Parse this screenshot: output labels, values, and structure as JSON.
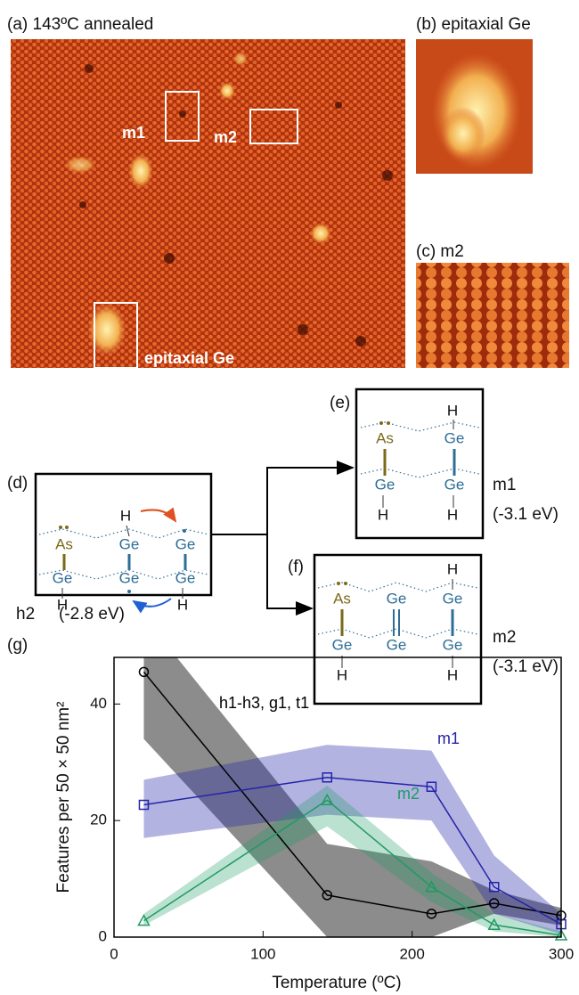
{
  "panel_a": {
    "label": "(a) 143ºC annealed",
    "box_m1": "m1",
    "box_m2": "m2",
    "box_epi": "epitaxial Ge"
  },
  "panel_b": {
    "label": "(b) epitaxial Ge"
  },
  "panel_c": {
    "label": "(c) m2"
  },
  "panel_d": {
    "label": "(d)",
    "atoms": [
      "As",
      "Ge",
      "Ge",
      "Ge",
      "Ge",
      "Ge",
      "H",
      "H",
      "H"
    ],
    "name": "h2",
    "energy": "(-2.8 eV)"
  },
  "panel_e": {
    "label": "(e)",
    "atoms": [
      "As",
      "Ge",
      "Ge",
      "Ge",
      "H",
      "H",
      "H"
    ],
    "name": "m1",
    "energy": "(-3.1 eV)"
  },
  "panel_f": {
    "label": "(f)",
    "atoms": [
      "As",
      "Ge",
      "Ge",
      "Ge",
      "Ge",
      "Ge",
      "H",
      "H",
      "H"
    ],
    "name": "m2",
    "energy": "(-3.1 eV)"
  },
  "chart_data": {
    "type": "line",
    "panel_label": "(g)",
    "xlabel": "Temperature (ºC)",
    "ylabel": "Features per 50 × 50 nm²",
    "x": [
      20,
      143,
      213,
      255,
      300
    ],
    "xlim": [
      0,
      300
    ],
    "ylim": [
      0,
      48
    ],
    "xticks": [
      0,
      100,
      200,
      300
    ],
    "yticks": [
      0,
      20,
      40
    ],
    "series": [
      {
        "name": "h1-h3, g1, t1",
        "color": "#000000",
        "marker": "circle",
        "values": [
          45.5,
          7.2,
          4.0,
          5.8,
          3.7
        ],
        "upper": [
          55,
          16,
          13,
          8,
          5
        ],
        "lower": [
          34,
          0,
          0,
          4,
          2
        ]
      },
      {
        "name": "m1",
        "color": "#2424a8",
        "marker": "square",
        "values": [
          22.7,
          27.4,
          25.8,
          8.6,
          2.2
        ],
        "upper": [
          27,
          33,
          32,
          14,
          4
        ],
        "lower": [
          17,
          21,
          20,
          4,
          0.5
        ]
      },
      {
        "name": "m2",
        "color": "#1f9a62",
        "marker": "triangle",
        "values": [
          2.8,
          23.5,
          8.6,
          2.1,
          0.3
        ],
        "upper": [
          4,
          26,
          11,
          4,
          1
        ],
        "lower": [
          2,
          19,
          6,
          1,
          0
        ]
      }
    ]
  }
}
